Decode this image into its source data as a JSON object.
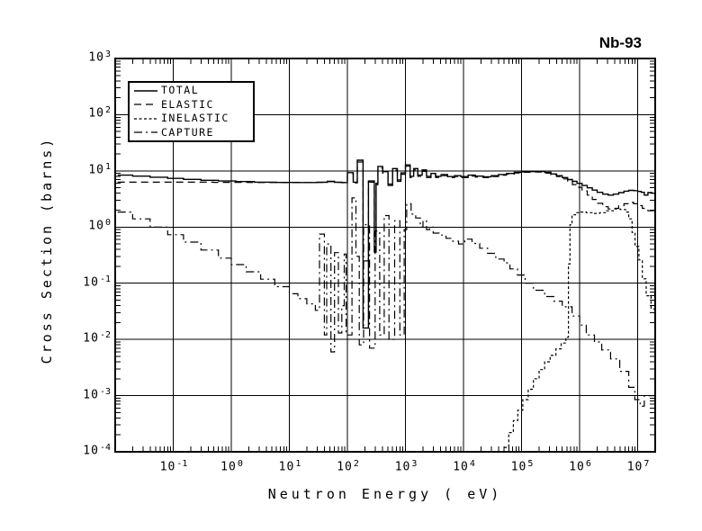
{
  "title": "Nb-93",
  "colors": {
    "foreground": "#000000",
    "background": "#ffffff"
  },
  "chart_data": {
    "type": "line",
    "title": "Nb-93",
    "xlabel": "Neutron Energy ( eV)",
    "ylabel": "Cross Section (barns)",
    "xscale": "log",
    "yscale": "log",
    "xlim": [
      0.01,
      20000000
    ],
    "ylim": [
      0.0001,
      1000
    ],
    "x_tick_exponents": [
      -1,
      0,
      1,
      2,
      3,
      4,
      5,
      6,
      7
    ],
    "y_tick_exponents": [
      3,
      2,
      1,
      0,
      -1,
      -2,
      -3,
      -4
    ],
    "grid": true,
    "legend_position": "top-left",
    "line_color": "#000000",
    "series": [
      {
        "name": "TOTAL",
        "line_style": "solid",
        "dash": "",
        "width": 1.4,
        "mode": "step",
        "points": [
          [
            0.011,
            8.4
          ],
          [
            0.02,
            8.05
          ],
          [
            0.04,
            7.7
          ],
          [
            0.08,
            7.35
          ],
          [
            0.15,
            7.05
          ],
          [
            0.3,
            6.8
          ],
          [
            0.6,
            6.6
          ],
          [
            1.2,
            6.45
          ],
          [
            2.5,
            6.3
          ],
          [
            6,
            6.22
          ],
          [
            15,
            6.2
          ],
          [
            30,
            6.28
          ],
          [
            45,
            6.5
          ],
          [
            60,
            6.28
          ],
          [
            80,
            6.2
          ],
          [
            100,
            9.3
          ],
          [
            126,
            6.3
          ],
          [
            148,
            15.5
          ],
          [
            186,
            0.016
          ],
          [
            230,
            6.6
          ],
          [
            290,
            0.36
          ],
          [
            312,
            6.0
          ],
          [
            335,
            12
          ],
          [
            405,
            9.7
          ],
          [
            500,
            5.8
          ],
          [
            600,
            11
          ],
          [
            725,
            6.9
          ],
          [
            835,
            9.2
          ],
          [
            1000,
            12.8
          ],
          [
            1200,
            8.0
          ],
          [
            1380,
            11.0
          ],
          [
            1630,
            8.4
          ],
          [
            1940,
            10.4
          ],
          [
            2300,
            8.0
          ],
          [
            2750,
            9.0
          ],
          [
            3300,
            8.0
          ],
          [
            4100,
            8.6
          ],
          [
            5300,
            7.9
          ],
          [
            7000,
            8.2
          ],
          [
            9000,
            7.9
          ],
          [
            12000,
            8.4
          ],
          [
            16000,
            8.05
          ],
          [
            22000,
            7.85
          ],
          [
            30000,
            8.2
          ],
          [
            40000,
            8.6
          ],
          [
            55000,
            9.0
          ],
          [
            75000,
            9.4
          ],
          [
            100000,
            9.7
          ],
          [
            160000,
            9.8
          ],
          [
            250000,
            9.4
          ],
          [
            320000,
            8.8
          ],
          [
            400000,
            8.2
          ],
          [
            500000,
            7.6
          ],
          [
            620000,
            7.0
          ],
          [
            750000,
            6.5
          ],
          [
            900000,
            6.0
          ],
          [
            1100000,
            5.5
          ],
          [
            1350000,
            5.0
          ],
          [
            1650000,
            4.55
          ],
          [
            2000000,
            4.15
          ],
          [
            2500000,
            3.85
          ],
          [
            3100000,
            3.7
          ],
          [
            3800000,
            3.85
          ],
          [
            4700000,
            4.1
          ],
          [
            5800000,
            4.35
          ],
          [
            7000000,
            4.5
          ],
          [
            8500000,
            4.45
          ],
          [
            10000000,
            4.3
          ],
          [
            11500000,
            4.15
          ],
          [
            13000000,
            3.7
          ],
          [
            15000000,
            4.1
          ],
          [
            17500000,
            4.0
          ],
          [
            20000000,
            3.9
          ]
        ]
      },
      {
        "name": "ELASTIC",
        "line_style": "long-dash",
        "dash": "8 5",
        "width": 1.2,
        "mode": "step",
        "points": [
          [
            0.011,
            6.3
          ],
          [
            0.5,
            6.25
          ],
          [
            2,
            6.2
          ],
          [
            8,
            6.18
          ],
          [
            20,
            6.18
          ],
          [
            30,
            6.25
          ],
          [
            45,
            6.42
          ],
          [
            60,
            6.25
          ],
          [
            80,
            6.15
          ],
          [
            100,
            8.8
          ],
          [
            126,
            6.1
          ],
          [
            148,
            14.4
          ],
          [
            186,
            0.25
          ],
          [
            230,
            6.3
          ],
          [
            290,
            0.5
          ],
          [
            312,
            5.7
          ],
          [
            335,
            11.2
          ],
          [
            405,
            9.1
          ],
          [
            500,
            5.5
          ],
          [
            600,
            10.3
          ],
          [
            725,
            6.5
          ],
          [
            835,
            8.7
          ],
          [
            1000,
            12.1
          ],
          [
            1200,
            7.6
          ],
          [
            1380,
            10.4
          ],
          [
            1630,
            8.0
          ],
          [
            1940,
            9.8
          ],
          [
            2300,
            7.6
          ],
          [
            2750,
            8.6
          ],
          [
            3300,
            7.65
          ],
          [
            4100,
            8.2
          ],
          [
            5300,
            7.6
          ],
          [
            7000,
            7.9
          ],
          [
            9000,
            7.6
          ],
          [
            12000,
            8.1
          ],
          [
            16000,
            7.75
          ],
          [
            22000,
            7.6
          ],
          [
            30000,
            7.95
          ],
          [
            40000,
            8.35
          ],
          [
            55000,
            8.75
          ],
          [
            75000,
            9.15
          ],
          [
            100000,
            9.45
          ],
          [
            160000,
            9.5
          ],
          [
            250000,
            9.1
          ],
          [
            320000,
            8.5
          ],
          [
            400000,
            7.9
          ],
          [
            500000,
            7.2
          ],
          [
            620000,
            6.4
          ],
          [
            750000,
            5.7
          ],
          [
            900000,
            5.1
          ],
          [
            1100000,
            4.4
          ],
          [
            1350000,
            3.7
          ],
          [
            1650000,
            3.1
          ],
          [
            2000000,
            2.65
          ],
          [
            2500000,
            2.3
          ],
          [
            3100000,
            2.1
          ],
          [
            3800000,
            2.15
          ],
          [
            4700000,
            2.4
          ],
          [
            5800000,
            2.6
          ],
          [
            7000000,
            2.75
          ],
          [
            8500000,
            2.6
          ],
          [
            10000000,
            2.4
          ],
          [
            12000000,
            2.15
          ],
          [
            15000000,
            1.95
          ],
          [
            20000000,
            2.1
          ]
        ]
      },
      {
        "name": "INELASTIC",
        "line_style": "short-dash",
        "dash": "3 2.5",
        "width": 1.2,
        "mode": "step",
        "points": [
          [
            50000,
            0.00012
          ],
          [
            60000,
            0.00022
          ],
          [
            72000,
            0.00036
          ],
          [
            86000,
            0.00055
          ],
          [
            105000,
            0.00085
          ],
          [
            130000,
            0.0013
          ],
          [
            160000,
            0.002
          ],
          [
            200000,
            0.0029
          ],
          [
            250000,
            0.004
          ],
          [
            310000,
            0.0052
          ],
          [
            390000,
            0.0068
          ],
          [
            480000,
            0.0086
          ],
          [
            580000,
            0.011
          ],
          [
            640000,
            0.22
          ],
          [
            680000,
            1.1
          ],
          [
            740000,
            1.65
          ],
          [
            850000,
            1.8
          ],
          [
            1000000,
            1.85
          ],
          [
            1300000,
            1.8
          ],
          [
            1700000,
            1.75
          ],
          [
            2200000,
            1.8
          ],
          [
            2900000,
            1.95
          ],
          [
            3800000,
            2.1
          ],
          [
            5000000,
            2.05
          ],
          [
            6200000,
            1.85
          ],
          [
            7000000,
            1.4
          ],
          [
            8000000,
            0.8
          ],
          [
            9000000,
            0.45
          ],
          [
            10500000,
            0.26
          ],
          [
            12000000,
            0.12
          ],
          [
            14000000,
            0.06
          ],
          [
            17000000,
            0.035
          ],
          [
            20000000,
            0.03
          ]
        ]
      },
      {
        "name": "CAPTURE",
        "line_style": "dash-dot",
        "dash": "9 4 2 4",
        "width": 1.2,
        "mode": "step",
        "points": [
          [
            0.011,
            1.85
          ],
          [
            0.02,
            1.4
          ],
          [
            0.04,
            1.0
          ],
          [
            0.08,
            0.73
          ],
          [
            0.15,
            0.54
          ],
          [
            0.3,
            0.39
          ],
          [
            0.6,
            0.28
          ],
          [
            1.0,
            0.215
          ],
          [
            1.8,
            0.16
          ],
          [
            3.2,
            0.118
          ],
          [
            5.6,
            0.087
          ],
          [
            10,
            0.065
          ],
          [
            14,
            0.053
          ],
          [
            20,
            0.043
          ],
          [
            28,
            0.033
          ],
          [
            33,
            0.75
          ],
          [
            40,
            0.012
          ],
          [
            44,
            0.5
          ],
          [
            52,
            0.006
          ],
          [
            60,
            0.35
          ],
          [
            70,
            0.013
          ],
          [
            80,
            0.04
          ],
          [
            88,
            0.33
          ],
          [
            95,
            0.012
          ],
          [
            120,
            3.3
          ],
          [
            140,
            0.3
          ],
          [
            160,
            0.008
          ],
          [
            190,
            1.1
          ],
          [
            240,
            0.007
          ],
          [
            300,
            0.85
          ],
          [
            360,
            0.012
          ],
          [
            430,
            1.6
          ],
          [
            520,
            0.01
          ],
          [
            650,
            1.3
          ],
          [
            800,
            0.012
          ],
          [
            950,
            0.9
          ],
          [
            1050,
            2.6
          ],
          [
            1250,
            1.7
          ],
          [
            1500,
            1.45
          ],
          [
            1800,
            1.0
          ],
          [
            2000,
            1.3
          ],
          [
            2300,
            0.9
          ],
          [
            2600,
            1.0
          ],
          [
            3000,
            0.78
          ],
          [
            3800,
            0.72
          ],
          [
            5000,
            0.63
          ],
          [
            6500,
            0.56
          ],
          [
            8200,
            0.5
          ],
          [
            10500,
            0.61
          ],
          [
            14000,
            0.51
          ],
          [
            19000,
            0.42
          ],
          [
            26000,
            0.34
          ],
          [
            36000,
            0.27
          ],
          [
            50000,
            0.23
          ],
          [
            63000,
            0.18
          ],
          [
            85000,
            0.14
          ],
          [
            115000,
            0.1
          ],
          [
            160000,
            0.075
          ],
          [
            250000,
            0.058
          ],
          [
            360000,
            0.048
          ],
          [
            500000,
            0.038
          ],
          [
            740000,
            0.026
          ],
          [
            1000000,
            0.018
          ],
          [
            1300000,
            0.012
          ],
          [
            1800000,
            0.009
          ],
          [
            2400000,
            0.0065
          ],
          [
            3400000,
            0.0045
          ],
          [
            4900000,
            0.0027
          ],
          [
            7000000,
            0.0014
          ],
          [
            8900000,
            0.00085
          ],
          [
            11000000,
            0.00065
          ],
          [
            13000000,
            0.001
          ],
          [
            20000000,
            0.00095
          ]
        ]
      }
    ]
  }
}
